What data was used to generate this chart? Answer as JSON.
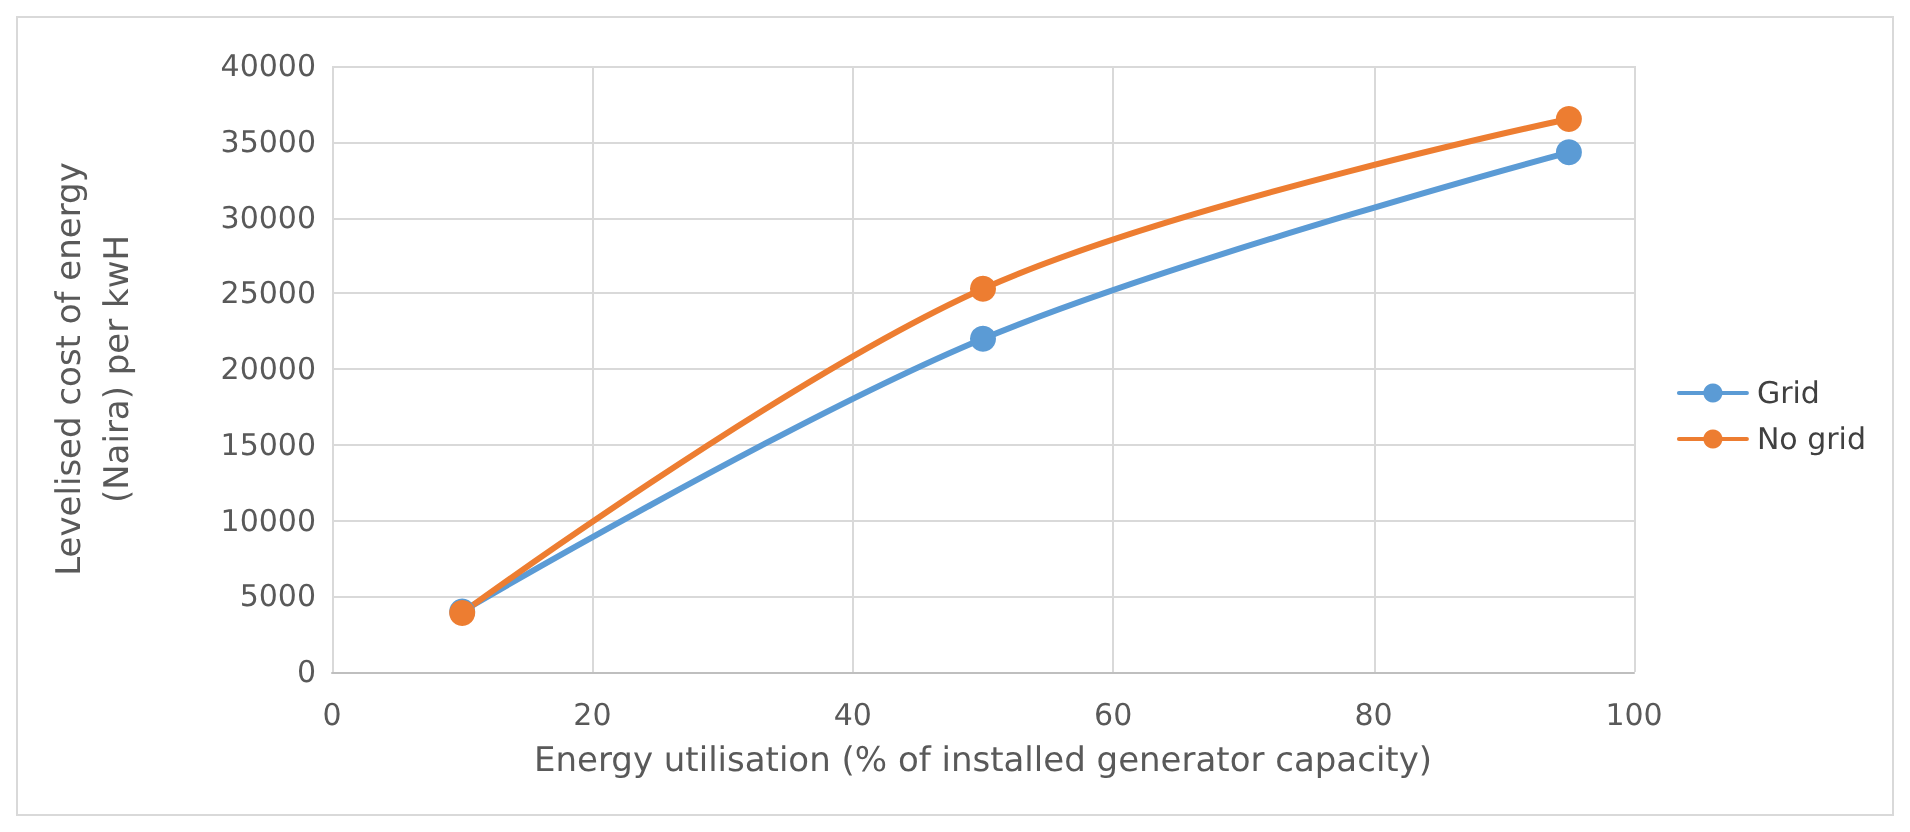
{
  "chart_data": {
    "type": "line",
    "xlabel": "Energy utilisation (% of installed generator capacity)",
    "ylabel": "Levelised cost of energy\n(Naira) per kwH",
    "x": [
      10,
      50,
      95
    ],
    "series": [
      {
        "name": "Grid",
        "color": "#5b9bd5",
        "values": [
          4000,
          22000,
          34300
        ]
      },
      {
        "name": "No grid",
        "color": "#ed7d31",
        "values": [
          3900,
          25300,
          36500
        ]
      }
    ],
    "xlim": [
      0,
      100
    ],
    "xticks": [
      0,
      20,
      40,
      60,
      80,
      100
    ],
    "ylim": [
      0,
      40000
    ],
    "yticks": [
      0,
      5000,
      10000,
      15000,
      20000,
      25000,
      30000,
      35000,
      40000
    ],
    "grid": true,
    "legend": "right",
    "marker": "circle",
    "line_style": "solid"
  }
}
